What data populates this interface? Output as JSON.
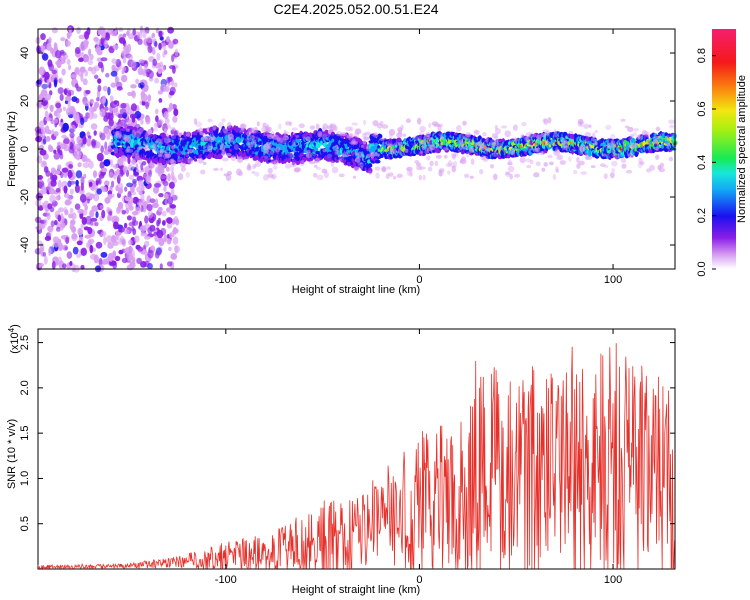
{
  "title": "C2E4.2025.052.00.51.E24",
  "spectrogram": {
    "type": "heatmap",
    "xlabel": "Height of straight line (km)",
    "ylabel": "Frequency (Hz)",
    "xlim": [
      -197,
      132
    ],
    "ylim": [
      -50,
      50
    ],
    "xticks": [
      -100,
      0,
      100
    ],
    "yticks": [
      -40,
      -20,
      0,
      20,
      40
    ],
    "colorbar": {
      "label": "Normalized spectral amplitude",
      "range": [
        0,
        0.9
      ],
      "ticks": [
        0.0,
        0.2,
        0.4,
        0.6,
        0.8
      ]
    }
  },
  "snr": {
    "type": "line",
    "xlabel": "Height of straight line (km)",
    "ylabel": "SNR (10 * v/v)",
    "multiplier": "(x10",
    "multiplier_exp": "4",
    "multiplier_close": ")",
    "xlim": [
      -197,
      132
    ],
    "ylim": [
      0,
      2.65
    ],
    "xticks": [
      -100,
      0,
      100
    ],
    "yticks": [
      0.5,
      1.0,
      1.5,
      2.0,
      2.5
    ],
    "color": "#e8302a"
  },
  "chart_data": [
    {
      "type": "heatmap",
      "title": "C2E4.2025.052.00.51.E24",
      "xlabel": "Height of straight line (km)",
      "ylabel": "Frequency (Hz)",
      "xlim": [
        -197,
        132
      ],
      "ylim": [
        -50,
        50
      ],
      "colorbar_label": "Normalized spectral amplitude",
      "colorbar_range": [
        0,
        0.9
      ],
      "features": {
        "noise_region_x": [
          -197,
          -125
        ],
        "signal_band_center_hz": 0,
        "signal_band_halfwidth_hz": 5,
        "signal_onset_x": -155,
        "strong_signal_onset_x": -20
      }
    },
    {
      "type": "line",
      "xlabel": "Height of straight line (km)",
      "ylabel": "SNR (10 * v/v)",
      "y_multiplier": 10000,
      "xlim": [
        -197,
        132
      ],
      "ylim": [
        0,
        2.65
      ],
      "series": [
        {
          "x": [
            -197,
            -150,
            -125,
            -100,
            -75,
            -50,
            -35,
            -20,
            -10,
            0,
            10,
            20,
            25,
            30,
            40,
            50,
            60,
            70,
            80,
            90,
            100,
            110,
            120,
            130
          ],
          "y_envelope_mean": [
            0.02,
            0.03,
            0.08,
            0.12,
            0.18,
            0.25,
            0.35,
            0.5,
            0.6,
            0.65,
            0.75,
            0.8,
            0.9,
            1.0,
            1.0,
            1.0,
            0.95,
            1.05,
            1.0,
            1.05,
            1.0,
            1.0,
            0.95,
            0.9
          ],
          "y_envelope_max": [
            0.05,
            0.06,
            0.15,
            0.3,
            0.45,
            0.75,
            0.95,
            1.05,
            1.3,
            1.55,
            1.65,
            1.8,
            2.5,
            2.5,
            2.35,
            2.1,
            2.45,
            2.2,
            2.5,
            2.55,
            2.62,
            2.45,
            2.1,
            2.2
          ]
        }
      ]
    }
  ]
}
